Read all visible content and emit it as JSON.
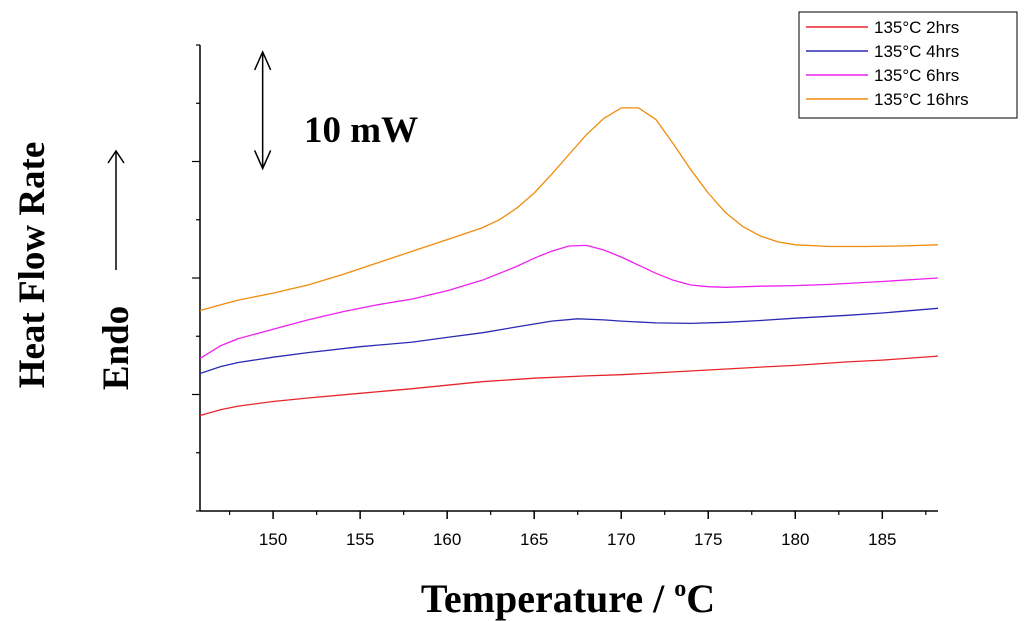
{
  "chart_data": {
    "type": "line",
    "xlabel_main": "Temperature / ",
    "xlabel_sup": "o",
    "xlabel_unit": "C",
    "ylabel": "Heat Flow Rate",
    "ylabel_secondary": "Endo",
    "scale_bar_label": "10 mW",
    "xlim": [
      145.8,
      188.2
    ],
    "ylim": [
      0,
      40
    ],
    "x_ticks": [
      150,
      155,
      160,
      165,
      170,
      175,
      180,
      185
    ],
    "y_ticks": [
      0,
      5,
      10,
      15,
      20,
      25,
      30,
      35,
      40
    ],
    "y_tick_labels_shown": false,
    "grid": false,
    "legend_position": "top-right",
    "scale_bar": {
      "x": 149.4,
      "y_from": 39.4,
      "y_to": 29.4
    },
    "series": [
      {
        "name": "135°C 2hrs",
        "color": "#e8262a",
        "points": [
          [
            145.8,
            8.2
          ],
          [
            147,
            8.7
          ],
          [
            148,
            9.0
          ],
          [
            150,
            9.4
          ],
          [
            152,
            9.7
          ],
          [
            155,
            10.1
          ],
          [
            158,
            10.5
          ],
          [
            160,
            10.8
          ],
          [
            162,
            11.1
          ],
          [
            165,
            11.4
          ],
          [
            168,
            11.6
          ],
          [
            170,
            11.7
          ],
          [
            172,
            11.85
          ],
          [
            175,
            12.1
          ],
          [
            178,
            12.35
          ],
          [
            180,
            12.5
          ],
          [
            183,
            12.8
          ],
          [
            185,
            12.95
          ],
          [
            188.2,
            13.3
          ]
        ]
      },
      {
        "name": "135°C 4hrs",
        "color": "#2a2ab4",
        "points": [
          [
            145.8,
            11.8
          ],
          [
            147,
            12.4
          ],
          [
            148,
            12.75
          ],
          [
            150,
            13.2
          ],
          [
            152,
            13.6
          ],
          [
            155,
            14.1
          ],
          [
            158,
            14.5
          ],
          [
            160,
            14.9
          ],
          [
            162,
            15.3
          ],
          [
            164,
            15.8
          ],
          [
            166,
            16.3
          ],
          [
            167.5,
            16.5
          ],
          [
            169,
            16.4
          ],
          [
            170,
            16.3
          ],
          [
            172,
            16.15
          ],
          [
            174,
            16.1
          ],
          [
            176,
            16.2
          ],
          [
            178,
            16.35
          ],
          [
            180,
            16.55
          ],
          [
            183,
            16.8
          ],
          [
            185,
            17.0
          ],
          [
            188.2,
            17.4
          ]
        ]
      },
      {
        "name": "135°C 6hrs",
        "color": "#ee22ee",
        "points": [
          [
            145.8,
            13.1
          ],
          [
            147,
            14.2
          ],
          [
            148,
            14.8
          ],
          [
            150,
            15.6
          ],
          [
            152,
            16.4
          ],
          [
            154,
            17.1
          ],
          [
            156,
            17.7
          ],
          [
            158,
            18.2
          ],
          [
            160,
            18.9
          ],
          [
            162,
            19.8
          ],
          [
            164,
            21.0
          ],
          [
            165,
            21.7
          ],
          [
            166,
            22.3
          ],
          [
            167,
            22.75
          ],
          [
            168,
            22.8
          ],
          [
            169,
            22.4
          ],
          [
            170,
            21.8
          ],
          [
            171,
            21.1
          ],
          [
            172,
            20.4
          ],
          [
            173,
            19.8
          ],
          [
            174,
            19.4
          ],
          [
            175,
            19.25
          ],
          [
            176,
            19.2
          ],
          [
            178,
            19.3
          ],
          [
            180,
            19.35
          ],
          [
            182,
            19.45
          ],
          [
            185,
            19.7
          ],
          [
            188.2,
            20.0
          ]
        ]
      },
      {
        "name": "135°C 16hrs",
        "color": "#f08c0a",
        "points": [
          [
            145.8,
            17.2
          ],
          [
            147,
            17.7
          ],
          [
            148,
            18.1
          ],
          [
            150,
            18.7
          ],
          [
            152,
            19.4
          ],
          [
            154,
            20.3
          ],
          [
            156,
            21.3
          ],
          [
            158,
            22.3
          ],
          [
            160,
            23.3
          ],
          [
            162,
            24.3
          ],
          [
            163,
            25.0
          ],
          [
            164,
            26.0
          ],
          [
            165,
            27.3
          ],
          [
            166,
            28.9
          ],
          [
            167,
            30.6
          ],
          [
            168,
            32.3
          ],
          [
            169,
            33.7
          ],
          [
            170,
            34.6
          ],
          [
            171,
            34.6
          ],
          [
            172,
            33.6
          ],
          [
            173,
            31.5
          ],
          [
            174,
            29.3
          ],
          [
            175,
            27.3
          ],
          [
            176,
            25.6
          ],
          [
            177,
            24.4
          ],
          [
            178,
            23.6
          ],
          [
            179,
            23.1
          ],
          [
            180,
            22.85
          ],
          [
            182,
            22.7
          ],
          [
            184,
            22.7
          ],
          [
            186,
            22.75
          ],
          [
            188.2,
            22.85
          ]
        ]
      }
    ]
  }
}
